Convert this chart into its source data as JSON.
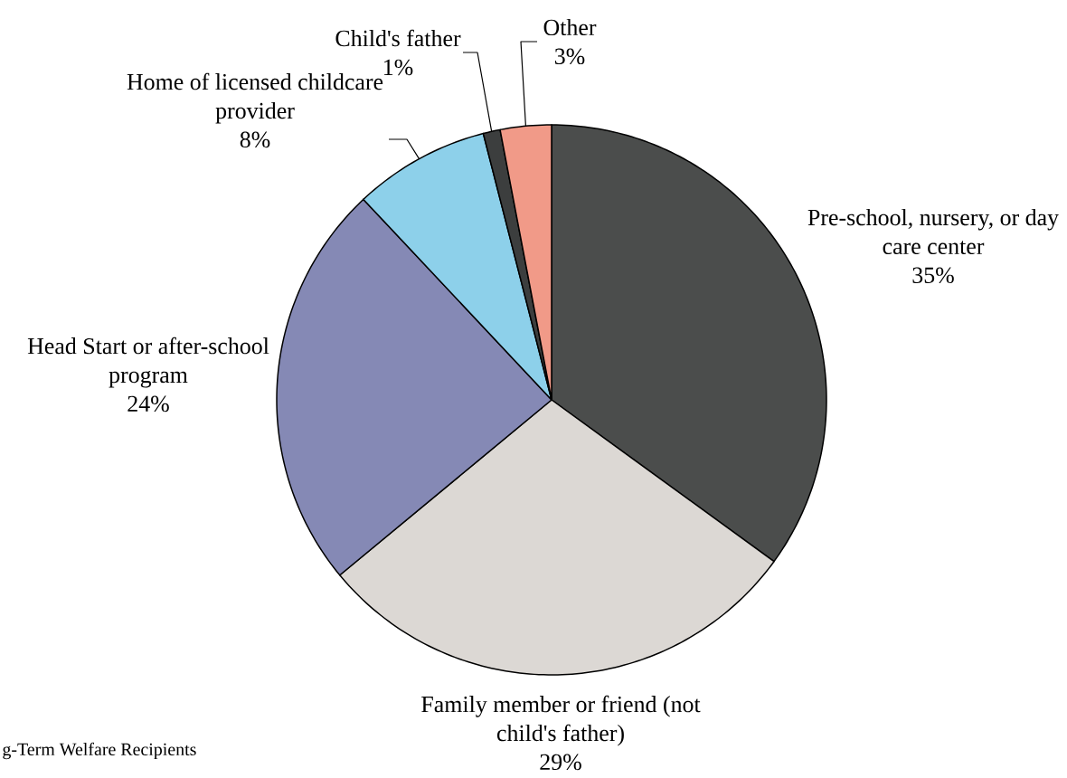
{
  "chart_data": {
    "type": "pie",
    "categories": [
      "Pre-school, nursery, or day care center",
      "Family member or friend (not child's father)",
      "Head Start or after-school program",
      "Home of licensed childcare provider",
      "Child's father",
      "Other"
    ],
    "values": [
      35,
      29,
      24,
      8,
      1,
      3
    ],
    "value_labels": [
      "35%",
      "29%",
      "24%",
      "8%",
      "1%",
      "3%"
    ],
    "colors": [
      "#4b4d4c",
      "#dcd8d4",
      "#8589b5",
      "#8dd0ea",
      "#3c3e3e",
      "#f19a88"
    ],
    "annotations": [
      "g-Term Welfare Recipients"
    ]
  }
}
